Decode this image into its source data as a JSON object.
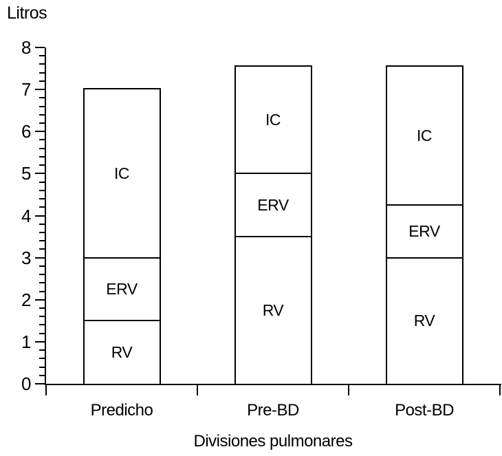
{
  "chart_data": {
    "type": "bar",
    "stacked": true,
    "xlabel": "Divisiones pulmonares",
    "ylabel": "Litros",
    "categories": [
      "Predicho",
      "Pre-BD",
      "Post-BD"
    ],
    "series": [
      {
        "name": "RV",
        "values": [
          1.5,
          3.5,
          3.0
        ]
      },
      {
        "name": "ERV",
        "values": [
          1.5,
          1.5,
          1.25
        ]
      },
      {
        "name": "IC",
        "values": [
          4.0,
          2.55,
          3.3
        ]
      }
    ],
    "totals": [
      7.0,
      7.55,
      7.55
    ],
    "ylim": [
      0,
      8
    ],
    "y_major_tick_step": 1,
    "y_minor_tick_step": 0.2,
    "y_tick_labels": [
      "0",
      "1",
      "2",
      "3",
      "4",
      "5",
      "6",
      "7",
      "8"
    ],
    "grid": "off",
    "legend": "none",
    "segment_labels_inside_bars": true,
    "bar_fill_color": "#ffffff",
    "line_color": "#000000",
    "background_color": "#ffffff"
  }
}
